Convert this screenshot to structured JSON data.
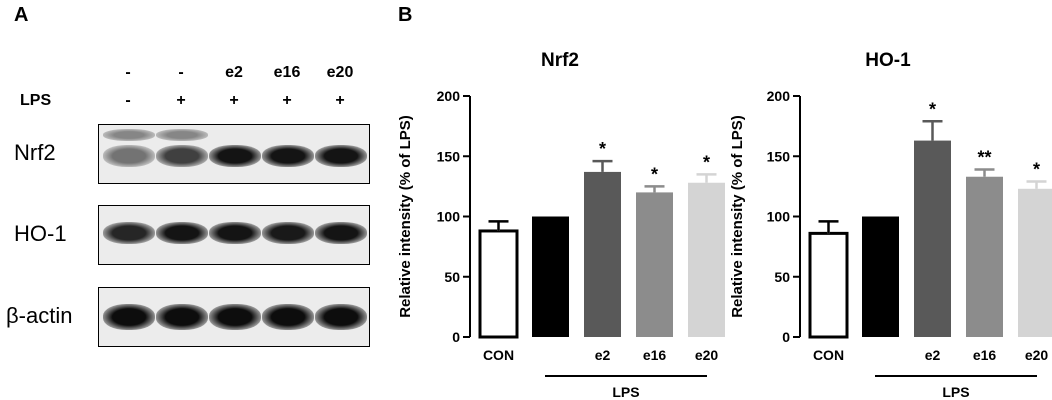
{
  "panel_a": {
    "letter": "A",
    "treatment_row": [
      "-",
      "-",
      "e2",
      "e16",
      "e20"
    ],
    "lps_label": "LPS",
    "lps_row": [
      "-",
      "+",
      "+",
      "+",
      "+"
    ],
    "blots": [
      {
        "label": "Nrf2",
        "intensity": [
          0.55,
          0.75,
          0.92,
          0.92,
          0.92
        ]
      },
      {
        "label": "HO-1",
        "intensity": [
          0.85,
          0.92,
          0.92,
          0.9,
          0.92
        ]
      },
      {
        "label": "β-actin",
        "intensity": [
          0.95,
          0.95,
          0.95,
          0.95,
          0.95
        ]
      }
    ]
  },
  "panel_b": {
    "letter": "B"
  },
  "chart_data": [
    {
      "type": "bar",
      "title": "Nrf2",
      "ylabel": "Relative intensity  (% of LPS)",
      "ylim": [
        0,
        200
      ],
      "yticks": [
        0,
        50,
        100,
        150,
        200
      ],
      "categories": [
        "CON",
        "",
        "e2",
        "e16",
        "e20"
      ],
      "values": [
        88,
        100,
        137,
        120,
        128
      ],
      "errors": [
        8,
        0,
        9,
        5,
        7
      ],
      "significance": [
        "",
        "",
        "*",
        "*",
        "*"
      ],
      "fills": [
        "#ffffff",
        "#000000",
        "#595959",
        "#8c8c8c",
        "#d4d4d4"
      ],
      "group_label": "LPS"
    },
    {
      "type": "bar",
      "title": "HO-1",
      "ylabel": "Relative intensity  (% of LPS)",
      "ylim": [
        0,
        200
      ],
      "yticks": [
        0,
        50,
        100,
        150,
        200
      ],
      "categories": [
        "CON",
        "",
        "e2",
        "e16",
        "e20"
      ],
      "values": [
        86,
        100,
        163,
        133,
        123
      ],
      "errors": [
        10,
        0,
        16,
        6,
        6
      ],
      "significance": [
        "",
        "",
        "*",
        "**",
        "*"
      ],
      "fills": [
        "#ffffff",
        "#000000",
        "#595959",
        "#8c8c8c",
        "#d4d4d4"
      ],
      "group_label": "LPS"
    }
  ]
}
